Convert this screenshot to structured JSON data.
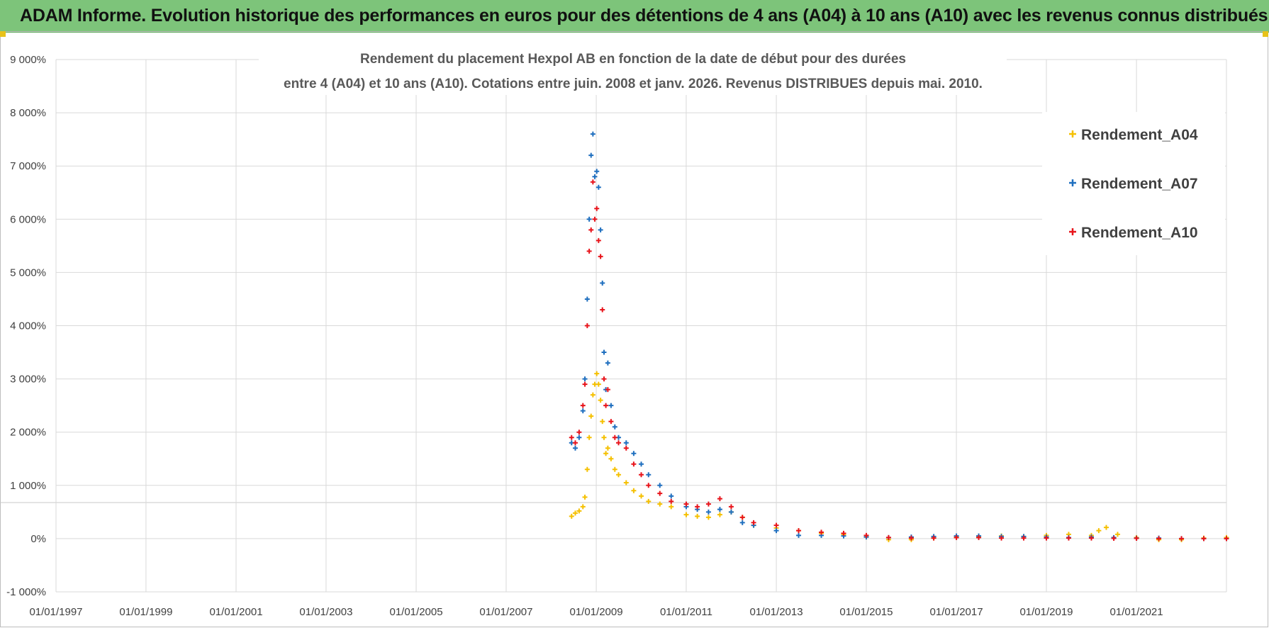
{
  "header": {
    "title": "ADAM Informe. Evolution historique des performances en euros pour des détentions de 4 ans (A04) à 10 ans (A10) avec les revenus connus distribués"
  },
  "chart_data": {
    "type": "scatter",
    "title_lines": [
      "Rendement du placement Hexpol AB en fonction de la date de début pour des durées",
      "entre 4 (A04) et 10 ans (A10). Cotations entre juin. 2008 et janv. 2026. Revenus DISTRIBUES  depuis mai. 2010."
    ],
    "xlabel": "",
    "ylabel": "",
    "x_ticks": [
      "01/01/1997",
      "01/01/1999",
      "01/01/2001",
      "01/01/2003",
      "01/01/2005",
      "01/01/2007",
      "01/01/2009",
      "01/01/2011",
      "01/01/2013",
      "01/01/2015",
      "01/01/2017",
      "01/01/2019",
      "01/01/2021"
    ],
    "xlim": [
      "1997-01-01",
      "2023-01-01"
    ],
    "y_ticks": [
      "-1 000%",
      "0%",
      "1 000%",
      "2 000%",
      "3 000%",
      "4 000%",
      "5 000%",
      "6 000%",
      "7 000%",
      "8 000%",
      "9 000%"
    ],
    "ylim": [
      -1000,
      9000
    ],
    "grid": true,
    "legend_position": "top-right",
    "series": [
      {
        "name": "Rendement_A04",
        "color": "#f5c000",
        "points": [
          [
            "2008-06-15",
            420
          ],
          [
            "2008-07-15",
            480
          ],
          [
            "2008-08-15",
            520
          ],
          [
            "2008-09-15",
            600
          ],
          [
            "2008-10-01",
            780
          ],
          [
            "2008-10-20",
            1300
          ],
          [
            "2008-11-05",
            1900
          ],
          [
            "2008-11-20",
            2300
          ],
          [
            "2008-12-05",
            2700
          ],
          [
            "2008-12-20",
            2900
          ],
          [
            "2009-01-05",
            3100
          ],
          [
            "2009-01-20",
            2900
          ],
          [
            "2009-02-05",
            2600
          ],
          [
            "2009-02-20",
            2200
          ],
          [
            "2009-03-05",
            1900
          ],
          [
            "2009-03-20",
            1600
          ],
          [
            "2009-04-05",
            1700
          ],
          [
            "2009-05-01",
            1500
          ],
          [
            "2009-06-01",
            1300
          ],
          [
            "2009-07-01",
            1200
          ],
          [
            "2009-09-01",
            1050
          ],
          [
            "2009-11-01",
            900
          ],
          [
            "2010-01-01",
            800
          ],
          [
            "2010-03-01",
            700
          ],
          [
            "2010-06-01",
            650
          ],
          [
            "2010-09-01",
            600
          ],
          [
            "2011-01-01",
            450
          ],
          [
            "2011-04-01",
            420
          ],
          [
            "2011-07-01",
            400
          ],
          [
            "2011-10-01",
            450
          ],
          [
            "2012-01-01",
            500
          ],
          [
            "2012-04-01",
            400
          ],
          [
            "2012-07-01",
            250
          ],
          [
            "2013-01-01",
            200
          ],
          [
            "2013-07-01",
            150
          ],
          [
            "2014-01-01",
            100
          ],
          [
            "2014-07-01",
            80
          ],
          [
            "2015-01-01",
            30
          ],
          [
            "2015-07-01",
            -20
          ],
          [
            "2016-01-01",
            -20
          ],
          [
            "2016-07-01",
            10
          ],
          [
            "2017-01-01",
            30
          ],
          [
            "2017-07-01",
            40
          ],
          [
            "2018-01-01",
            50
          ],
          [
            "2018-07-01",
            40
          ],
          [
            "2019-01-01",
            60
          ],
          [
            "2019-07-01",
            80
          ],
          [
            "2020-01-01",
            60
          ],
          [
            "2020-03-01",
            150
          ],
          [
            "2020-05-01",
            210
          ],
          [
            "2020-08-01",
            80
          ],
          [
            "2021-01-01",
            20
          ],
          [
            "2021-07-01",
            -20
          ],
          [
            "2022-01-01",
            -20
          ],
          [
            "2022-07-01",
            10
          ],
          [
            "2023-01-01",
            20
          ]
        ]
      },
      {
        "name": "Rendement_A07",
        "color": "#1f6fbf",
        "points": [
          [
            "2008-06-15",
            1800
          ],
          [
            "2008-07-15",
            1700
          ],
          [
            "2008-08-15",
            1900
          ],
          [
            "2008-09-15",
            2400
          ],
          [
            "2008-10-01",
            3000
          ],
          [
            "2008-10-20",
            4500
          ],
          [
            "2008-11-05",
            6000
          ],
          [
            "2008-11-20",
            7200
          ],
          [
            "2008-12-05",
            7600
          ],
          [
            "2008-12-20",
            6800
          ],
          [
            "2009-01-05",
            6900
          ],
          [
            "2009-01-20",
            6600
          ],
          [
            "2009-02-05",
            5800
          ],
          [
            "2009-02-20",
            4800
          ],
          [
            "2009-03-05",
            3500
          ],
          [
            "2009-03-20",
            2800
          ],
          [
            "2009-04-05",
            3300
          ],
          [
            "2009-05-01",
            2500
          ],
          [
            "2009-06-01",
            2100
          ],
          [
            "2009-07-01",
            1900
          ],
          [
            "2009-09-01",
            1800
          ],
          [
            "2009-11-01",
            1600
          ],
          [
            "2010-01-01",
            1400
          ],
          [
            "2010-03-01",
            1200
          ],
          [
            "2010-06-01",
            1000
          ],
          [
            "2010-09-01",
            800
          ],
          [
            "2011-01-01",
            600
          ],
          [
            "2011-04-01",
            550
          ],
          [
            "2011-07-01",
            500
          ],
          [
            "2011-10-01",
            550
          ],
          [
            "2012-01-01",
            500
          ],
          [
            "2012-04-01",
            300
          ],
          [
            "2012-07-01",
            250
          ],
          [
            "2013-01-01",
            150
          ],
          [
            "2013-07-01",
            60
          ],
          [
            "2014-01-01",
            60
          ],
          [
            "2014-07-01",
            50
          ],
          [
            "2015-01-01",
            30
          ],
          [
            "2015-07-01",
            20
          ],
          [
            "2016-01-01",
            30
          ],
          [
            "2016-07-01",
            40
          ],
          [
            "2017-01-01",
            50
          ],
          [
            "2017-07-01",
            50
          ],
          [
            "2018-01-01",
            40
          ],
          [
            "2018-07-01",
            40
          ],
          [
            "2019-01-01",
            30
          ],
          [
            "2019-07-01",
            20
          ],
          [
            "2020-01-01",
            30
          ],
          [
            "2020-07-01",
            20
          ],
          [
            "2021-01-01",
            10
          ],
          [
            "2021-07-01",
            10
          ],
          [
            "2022-01-01",
            0
          ],
          [
            "2022-07-01",
            0
          ],
          [
            "2023-01-01",
            0
          ]
        ]
      },
      {
        "name": "Rendement_A10",
        "color": "#e8141b",
        "points": [
          [
            "2008-06-15",
            1900
          ],
          [
            "2008-07-15",
            1800
          ],
          [
            "2008-08-15",
            2000
          ],
          [
            "2008-09-15",
            2500
          ],
          [
            "2008-10-01",
            2900
          ],
          [
            "2008-10-20",
            4000
          ],
          [
            "2008-11-05",
            5400
          ],
          [
            "2008-11-20",
            5800
          ],
          [
            "2008-12-05",
            6700
          ],
          [
            "2008-12-20",
            6000
          ],
          [
            "2009-01-05",
            6200
          ],
          [
            "2009-01-20",
            5600
          ],
          [
            "2009-02-05",
            5300
          ],
          [
            "2009-02-20",
            4300
          ],
          [
            "2009-03-05",
            3000
          ],
          [
            "2009-03-20",
            2500
          ],
          [
            "2009-04-05",
            2800
          ],
          [
            "2009-05-01",
            2200
          ],
          [
            "2009-06-01",
            1900
          ],
          [
            "2009-07-01",
            1800
          ],
          [
            "2009-09-01",
            1700
          ],
          [
            "2009-11-01",
            1400
          ],
          [
            "2010-01-01",
            1200
          ],
          [
            "2010-03-01",
            1000
          ],
          [
            "2010-06-01",
            850
          ],
          [
            "2010-09-01",
            700
          ],
          [
            "2011-01-01",
            650
          ],
          [
            "2011-04-01",
            600
          ],
          [
            "2011-07-01",
            650
          ],
          [
            "2011-10-01",
            750
          ],
          [
            "2012-01-01",
            600
          ],
          [
            "2012-04-01",
            400
          ],
          [
            "2012-07-01",
            300
          ],
          [
            "2013-01-01",
            250
          ],
          [
            "2013-07-01",
            150
          ],
          [
            "2014-01-01",
            120
          ],
          [
            "2014-07-01",
            100
          ],
          [
            "2015-01-01",
            60
          ],
          [
            "2015-07-01",
            20
          ],
          [
            "2016-01-01",
            10
          ],
          [
            "2016-07-01",
            10
          ],
          [
            "2017-01-01",
            20
          ],
          [
            "2017-07-01",
            20
          ],
          [
            "2018-01-01",
            10
          ],
          [
            "2018-07-01",
            10
          ],
          [
            "2019-01-01",
            10
          ],
          [
            "2019-07-01",
            10
          ],
          [
            "2020-01-01",
            10
          ],
          [
            "2020-07-01",
            5
          ],
          [
            "2021-01-01",
            5
          ],
          [
            "2021-07-01",
            0
          ],
          [
            "2022-01-01",
            0
          ],
          [
            "2022-07-01",
            0
          ],
          [
            "2023-01-01",
            0
          ]
        ]
      }
    ]
  }
}
